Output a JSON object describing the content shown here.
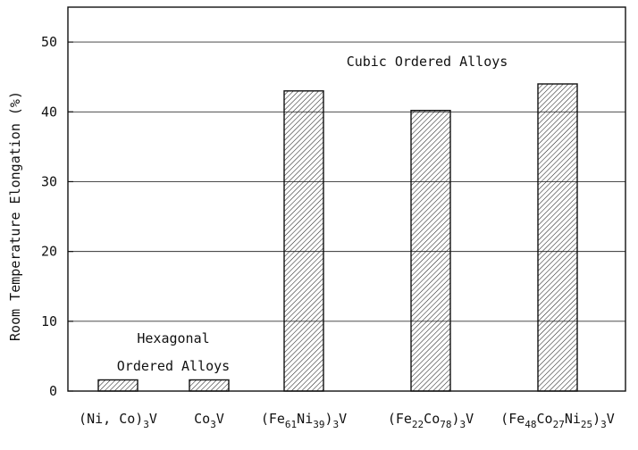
{
  "chart_data": {
    "type": "bar",
    "title": "",
    "xlabel": "",
    "ylabel": "Room Temperature Elongation (%)",
    "ylim": [
      0,
      55
    ],
    "yticks": [
      0,
      10,
      20,
      30,
      40,
      50
    ],
    "grid": true,
    "categories": [
      {
        "parts": [
          {
            "t": "(Ni, Co)"
          },
          {
            "t": "3",
            "sub": true
          },
          {
            "t": "V"
          }
        ]
      },
      {
        "parts": [
          {
            "t": "Co"
          },
          {
            "t": "3",
            "sub": true
          },
          {
            "t": "V"
          }
        ]
      },
      {
        "parts": [
          {
            "t": "(Fe"
          },
          {
            "t": "61",
            "sub": true
          },
          {
            "t": "Ni"
          },
          {
            "t": "39",
            "sub": true
          },
          {
            "t": ")"
          },
          {
            "t": "3",
            "sub": true
          },
          {
            "t": "V"
          }
        ]
      },
      {
        "parts": [
          {
            "t": "(Fe"
          },
          {
            "t": "22",
            "sub": true
          },
          {
            "t": "Co"
          },
          {
            "t": "78",
            "sub": true
          },
          {
            "t": ")"
          },
          {
            "t": "3",
            "sub": true
          },
          {
            "t": "V"
          }
        ]
      },
      {
        "parts": [
          {
            "t": "(Fe"
          },
          {
            "t": "48",
            "sub": true
          },
          {
            "t": "Co"
          },
          {
            "t": "27",
            "sub": true
          },
          {
            "t": "Ni"
          },
          {
            "t": "25",
            "sub": true
          },
          {
            "t": ")"
          },
          {
            "t": "3",
            "sub": true
          },
          {
            "t": "V"
          }
        ]
      }
    ],
    "values": [
      1.6,
      1.6,
      43,
      40.2,
      44
    ],
    "annotations": [
      {
        "id": "hexagonal",
        "lines": [
          "Hexagonal",
          "Ordered Alloys"
        ]
      },
      {
        "id": "cubic",
        "lines": [
          "Cubic Ordered Alloys"
        ]
      }
    ],
    "colors": {
      "bar_fill": "#ffffff",
      "hatch": "#222222",
      "axis": "#111111",
      "grid": "#333333"
    }
  }
}
